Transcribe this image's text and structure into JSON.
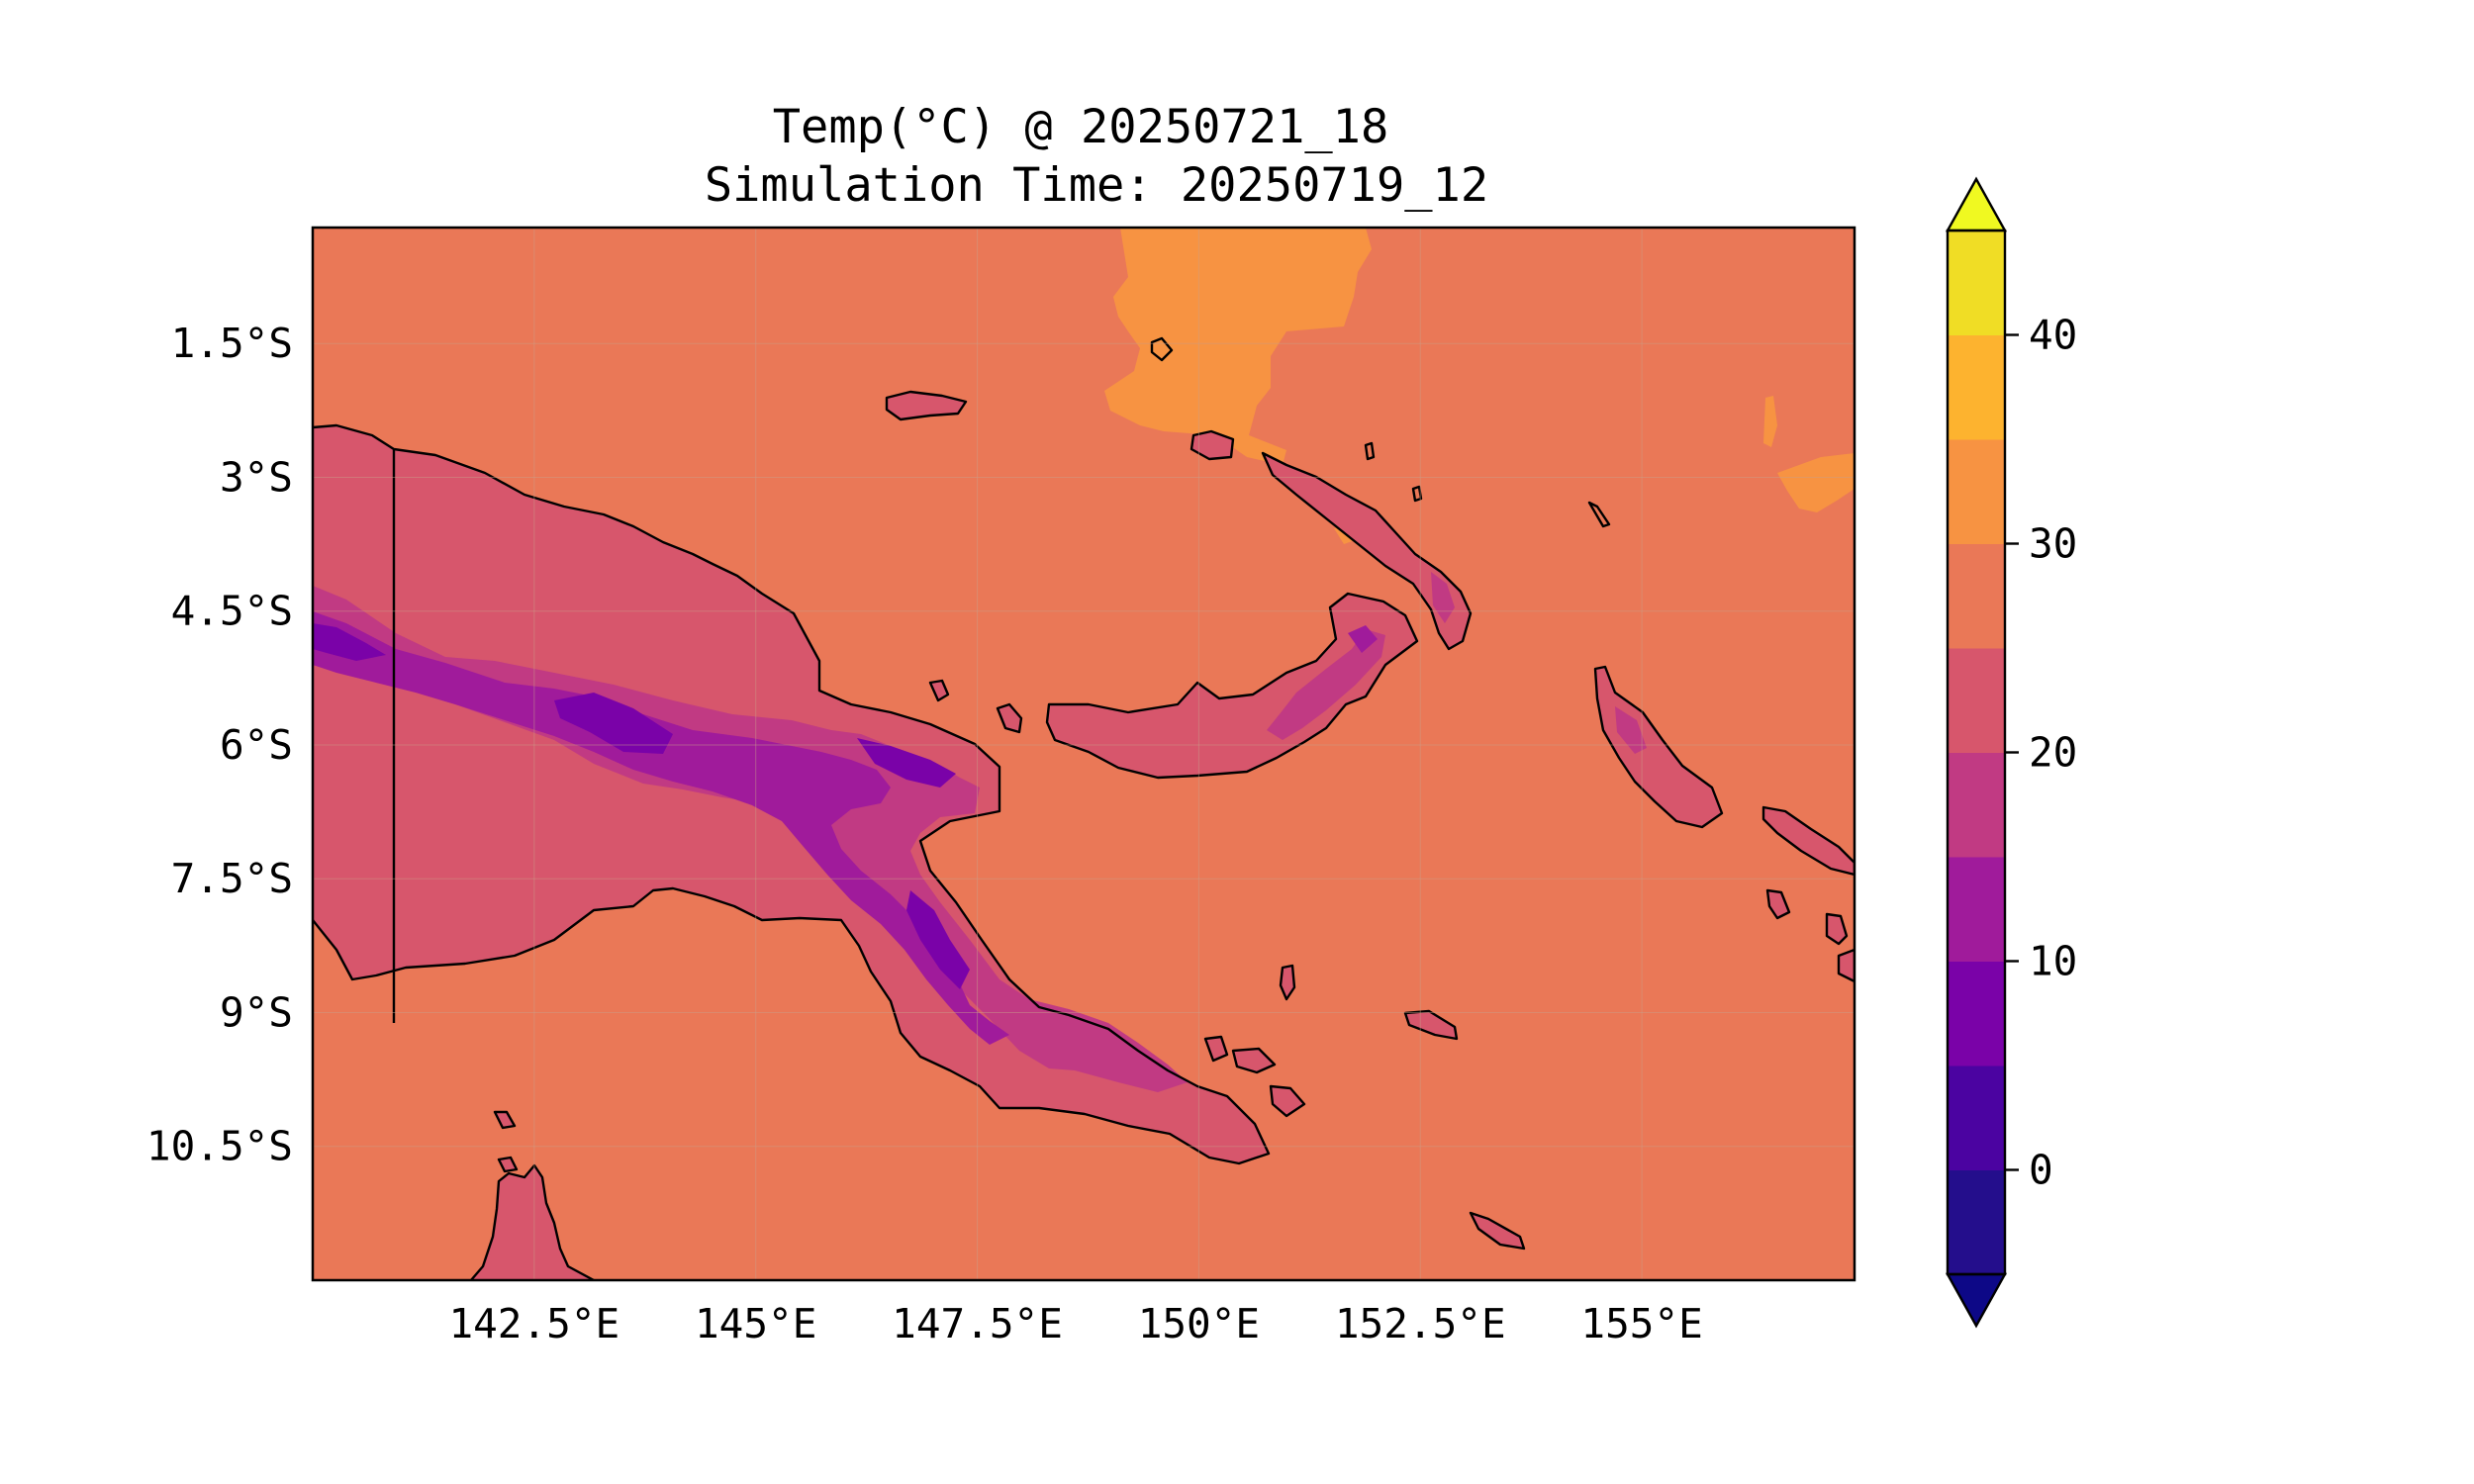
{
  "title": {
    "line1": "Temp(°C) @ 20250721_18",
    "line2": "Simulation Time: 20250719_12"
  },
  "map": {
    "background_color": "#ea7857",
    "lat_ticks": [
      "1.5°S",
      "3°S",
      "4.5°S",
      "6°S",
      "7.5°S",
      "9°S",
      "10.5°S"
    ],
    "lon_ticks": [
      "142.5°E",
      "145°E",
      "147.5°E",
      "150°E",
      "152.5°E",
      "155°E"
    ],
    "lat_range": [
      "0.2°S",
      "12.0°S"
    ],
    "lon_range": [
      "140.0°E",
      "157.4°E"
    ],
    "variable": "Temperature (°C)",
    "gridlines": true
  },
  "colorbar": {
    "ticks": [
      "0",
      "10",
      "20",
      "30",
      "40"
    ],
    "bins": [
      {
        "range": "-5–0",
        "color": "#240e8c"
      },
      {
        "range": "0–5",
        "color": "#4b03a1"
      },
      {
        "range": "5–10",
        "color": "#7a02a8"
      },
      {
        "range": "10–15",
        "color": "#a01b9b"
      },
      {
        "range": "15–20",
        "color": "#c13a83"
      },
      {
        "range": "20–25",
        "color": "#d7566c"
      },
      {
        "range": "25–30",
        "color": "#ea7857"
      },
      {
        "range": "30–35",
        "color": "#f79342"
      },
      {
        "range": "35–40",
        "color": "#fdb32f"
      },
      {
        "range": "40–45",
        "color": "#f0dd25"
      }
    ],
    "under_color": "#0d0887",
    "over_color": "#f0f921",
    "extend": "both"
  }
}
